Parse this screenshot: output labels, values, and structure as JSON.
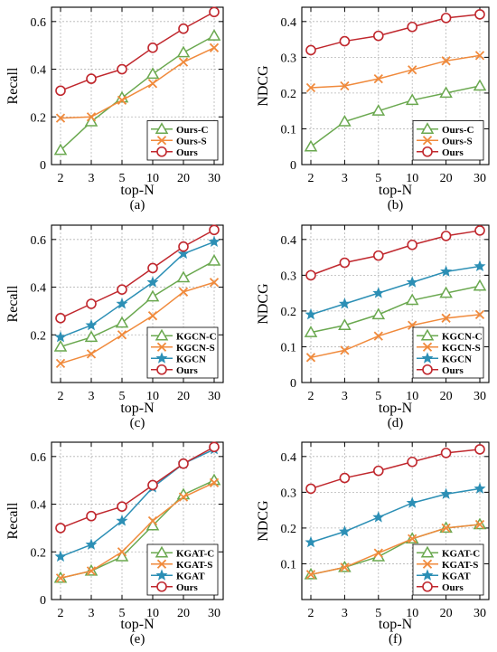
{
  "figure": {
    "x_label": "top-N",
    "categories": [
      "2",
      "3",
      "5",
      "10",
      "20",
      "30"
    ]
  },
  "colors": {
    "green": "#6aa84f",
    "orange": "#f08a3c",
    "blue": "#2c8fb5",
    "red": "#c0272d"
  },
  "chart_data": [
    {
      "type": "line",
      "caption": "(a)",
      "xlabel": "top-N",
      "ylabel": "Recall",
      "categories": [
        "2",
        "3",
        "5",
        "10",
        "20",
        "30"
      ],
      "ylim": [
        0,
        0.66
      ],
      "yticks": [
        0,
        0.2,
        0.4,
        0.6
      ],
      "ytick_labels": [
        "0",
        "0.2",
        "0.4",
        "0.6"
      ],
      "legend_position": "bottom-right",
      "series": [
        {
          "name": "Ours-C",
          "marker": "triangle",
          "color": "#6aa84f",
          "values": [
            0.06,
            0.18,
            0.28,
            0.38,
            0.47,
            0.54
          ]
        },
        {
          "name": "Ours-S",
          "marker": "x",
          "color": "#f08a3c",
          "values": [
            0.195,
            0.2,
            0.27,
            0.34,
            0.43,
            0.49
          ]
        },
        {
          "name": "Ours",
          "marker": "circle",
          "color": "#c0272d",
          "values": [
            0.31,
            0.36,
            0.4,
            0.49,
            0.57,
            0.64
          ]
        }
      ]
    },
    {
      "type": "line",
      "caption": "(b)",
      "xlabel": "top-N",
      "ylabel": "NDCG",
      "categories": [
        "2",
        "3",
        "5",
        "10",
        "20",
        "30"
      ],
      "ylim": [
        0,
        0.44
      ],
      "yticks": [
        0,
        0.1,
        0.2,
        0.3,
        0.4
      ],
      "ytick_labels": [
        "0",
        "0.1",
        "0.2",
        "0.3",
        "0.4"
      ],
      "legend_position": "bottom-right",
      "series": [
        {
          "name": "Ours-C",
          "marker": "triangle",
          "color": "#6aa84f",
          "values": [
            0.05,
            0.12,
            0.15,
            0.18,
            0.2,
            0.22
          ]
        },
        {
          "name": "Ours-S",
          "marker": "x",
          "color": "#f08a3c",
          "values": [
            0.215,
            0.22,
            0.24,
            0.265,
            0.29,
            0.305
          ]
        },
        {
          "name": "Ours",
          "marker": "circle",
          "color": "#c0272d",
          "values": [
            0.32,
            0.345,
            0.36,
            0.385,
            0.41,
            0.42
          ]
        }
      ]
    },
    {
      "type": "line",
      "caption": "(c)",
      "xlabel": "top-N",
      "ylabel": "Recall",
      "categories": [
        "2",
        "3",
        "5",
        "10",
        "20",
        "30"
      ],
      "ylim": [
        0,
        0.66
      ],
      "yticks": [
        0.2,
        0.4,
        0.6
      ],
      "ytick_labels": [
        "0.2",
        "0.4",
        "0.6"
      ],
      "legend_position": "bottom-right",
      "series": [
        {
          "name": "KGCN-C",
          "marker": "triangle",
          "color": "#6aa84f",
          "values": [
            0.15,
            0.19,
            0.25,
            0.36,
            0.44,
            0.51
          ]
        },
        {
          "name": "KGCN-S",
          "marker": "x",
          "color": "#f08a3c",
          "values": [
            0.08,
            0.12,
            0.2,
            0.28,
            0.38,
            0.42
          ]
        },
        {
          "name": "KGCN",
          "marker": "star",
          "color": "#2c8fb5",
          "values": [
            0.19,
            0.24,
            0.33,
            0.42,
            0.54,
            0.59
          ]
        },
        {
          "name": "Ours",
          "marker": "circle",
          "color": "#c0272d",
          "values": [
            0.27,
            0.33,
            0.39,
            0.48,
            0.57,
            0.64
          ]
        }
      ]
    },
    {
      "type": "line",
      "caption": "(d)",
      "xlabel": "top-N",
      "ylabel": "NDCG",
      "categories": [
        "2",
        "3",
        "5",
        "10",
        "20",
        "30"
      ],
      "ylim": [
        0,
        0.44
      ],
      "yticks": [
        0,
        0.1,
        0.2,
        0.3,
        0.4
      ],
      "ytick_labels": [
        "0",
        "0.1",
        "0.2",
        "0.3",
        "0.4"
      ],
      "legend_position": "bottom-right",
      "series": [
        {
          "name": "KGCN-C",
          "marker": "triangle",
          "color": "#6aa84f",
          "values": [
            0.14,
            0.16,
            0.19,
            0.23,
            0.25,
            0.27
          ]
        },
        {
          "name": "KGCN-S",
          "marker": "x",
          "color": "#f08a3c",
          "values": [
            0.07,
            0.09,
            0.13,
            0.16,
            0.18,
            0.19
          ]
        },
        {
          "name": "KGCN",
          "marker": "star",
          "color": "#2c8fb5",
          "values": [
            0.19,
            0.22,
            0.25,
            0.28,
            0.31,
            0.325
          ]
        },
        {
          "name": "Ours",
          "marker": "circle",
          "color": "#c0272d",
          "values": [
            0.3,
            0.335,
            0.355,
            0.385,
            0.41,
            0.425
          ]
        }
      ]
    },
    {
      "type": "line",
      "caption": "(e)",
      "xlabel": "top-N",
      "ylabel": "Recall",
      "categories": [
        "2",
        "3",
        "5",
        "10",
        "20",
        "30"
      ],
      "ylim": [
        0,
        0.66
      ],
      "yticks": [
        0,
        0.2,
        0.4,
        0.6
      ],
      "ytick_labels": [
        "0",
        "0.2",
        "0.4",
        "0.6"
      ],
      "legend_position": "bottom-right",
      "series": [
        {
          "name": "KGAT-C",
          "marker": "triangle",
          "color": "#6aa84f",
          "values": [
            0.09,
            0.12,
            0.18,
            0.31,
            0.44,
            0.5
          ]
        },
        {
          "name": "KGAT-S",
          "marker": "x",
          "color": "#f08a3c",
          "values": [
            0.09,
            0.12,
            0.2,
            0.33,
            0.43,
            0.49
          ]
        },
        {
          "name": "KGAT",
          "marker": "star",
          "color": "#2c8fb5",
          "values": [
            0.18,
            0.23,
            0.33,
            0.47,
            0.57,
            0.63
          ]
        },
        {
          "name": "Ours",
          "marker": "circle",
          "color": "#c0272d",
          "values": [
            0.3,
            0.35,
            0.39,
            0.48,
            0.57,
            0.64
          ]
        }
      ]
    },
    {
      "type": "line",
      "caption": "(f)",
      "xlabel": "top-N",
      "ylabel": "NDCG",
      "categories": [
        "2",
        "3",
        "5",
        "10",
        "20",
        "30"
      ],
      "ylim": [
        0,
        0.44
      ],
      "yticks": [
        0.1,
        0.2,
        0.3,
        0.4
      ],
      "ytick_labels": [
        "0.1",
        "0.2",
        "0.3",
        "0.4"
      ],
      "legend_position": "bottom-right",
      "series": [
        {
          "name": "KGAT-C",
          "marker": "triangle",
          "color": "#6aa84f",
          "values": [
            0.07,
            0.09,
            0.12,
            0.17,
            0.2,
            0.21
          ]
        },
        {
          "name": "KGAT-S",
          "marker": "x",
          "color": "#f08a3c",
          "values": [
            0.07,
            0.09,
            0.13,
            0.17,
            0.2,
            0.21
          ]
        },
        {
          "name": "KGAT",
          "marker": "star",
          "color": "#2c8fb5",
          "values": [
            0.16,
            0.19,
            0.23,
            0.27,
            0.295,
            0.31
          ]
        },
        {
          "name": "Ours",
          "marker": "circle",
          "color": "#c0272d",
          "values": [
            0.31,
            0.34,
            0.36,
            0.385,
            0.41,
            0.42
          ]
        }
      ]
    }
  ]
}
